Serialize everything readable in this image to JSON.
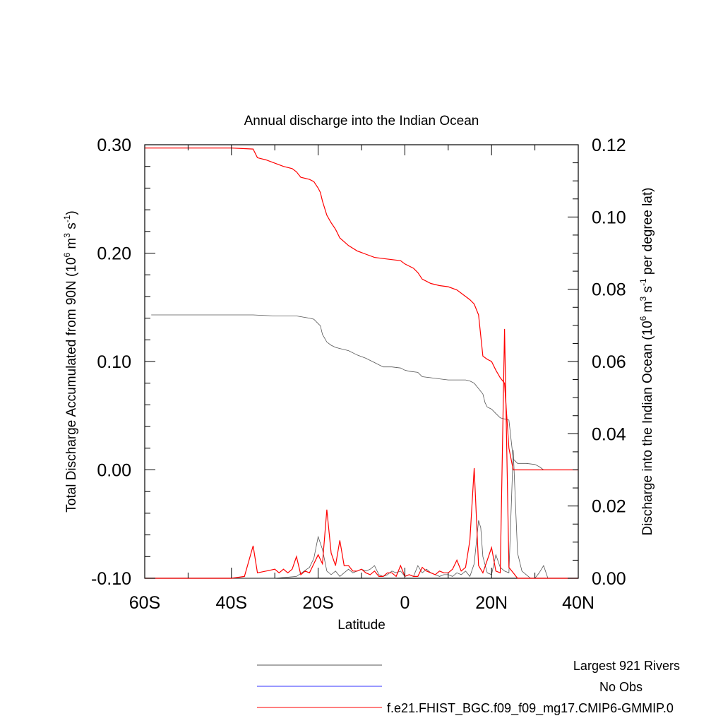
{
  "chart_data": {
    "type": "line",
    "title": "Annual discharge into the Indian Ocean",
    "xlabel": "Latitude",
    "ylabel_left": {
      "base": "Total Discharge Accumulated from 90N (10",
      "sup1": "6",
      "mid1": " m",
      "sup2": "3",
      "mid2": " s",
      "sup3": "-1",
      "end": ")"
    },
    "ylabel_right": {
      "base": "Discharge into the Indian Ocean (10",
      "sup1": "6",
      "mid1": " m",
      "sup2": "3",
      "mid2": " s",
      "sup3": "-1",
      "end": " per degree lat)"
    },
    "xlim": [
      -60,
      40
    ],
    "ylim_left": [
      -0.1,
      0.3
    ],
    "ylim_right": [
      0.0,
      0.12
    ],
    "x_ticks": [
      {
        "value": -60,
        "label": "60S"
      },
      {
        "value": -40,
        "label": "40S"
      },
      {
        "value": -20,
        "label": "20S"
      },
      {
        "value": 0,
        "label": "0"
      },
      {
        "value": 20,
        "label": "20N"
      },
      {
        "value": 40,
        "label": "40N"
      }
    ],
    "y_left_ticks": [
      {
        "value": -0.1,
        "label": "-0.10"
      },
      {
        "value": 0.0,
        "label": "0.00"
      },
      {
        "value": 0.1,
        "label": "0.10"
      },
      {
        "value": 0.2,
        "label": "0.20"
      },
      {
        "value": 0.3,
        "label": "0.30"
      }
    ],
    "y_right_ticks": [
      {
        "value": 0.0,
        "label": "0.00"
      },
      {
        "value": 0.02,
        "label": "0.02"
      },
      {
        "value": 0.04,
        "label": "0.04"
      },
      {
        "value": 0.06,
        "label": "0.06"
      },
      {
        "value": 0.08,
        "label": "0.08"
      },
      {
        "value": 0.1,
        "label": "0.10"
      },
      {
        "value": 0.12,
        "label": "0.12"
      }
    ],
    "grid": false,
    "legend_placement": "bottom-right",
    "series": [
      {
        "name": "Largest 921 Rivers",
        "axis": "left",
        "color": "#555555",
        "x": [
          -58.5,
          -50,
          -40,
          -35,
          -30,
          -25,
          -22,
          -21,
          -20,
          -19.5,
          -19,
          -18,
          -17,
          -16,
          -15,
          -13,
          -11,
          -9,
          -7,
          -5,
          -3,
          -1,
          0,
          1,
          3,
          4,
          6,
          8,
          10,
          12,
          14,
          15,
          16,
          17,
          18,
          18.5,
          19,
          20,
          21,
          22,
          23,
          24,
          25,
          26,
          28,
          30,
          31,
          32,
          40
        ],
        "y": [
          0.143,
          0.143,
          0.143,
          0.143,
          0.142,
          0.142,
          0.14,
          0.139,
          0.135,
          0.133,
          0.125,
          0.118,
          0.115,
          0.113,
          0.112,
          0.11,
          0.106,
          0.103,
          0.099,
          0.095,
          0.095,
          0.094,
          0.092,
          0.091,
          0.09,
          0.086,
          0.085,
          0.084,
          0.083,
          0.083,
          0.083,
          0.082,
          0.08,
          0.075,
          0.07,
          0.062,
          0.058,
          0.056,
          0.052,
          0.048,
          0.047,
          0.046,
          0.01,
          0.006,
          0.006,
          0.005,
          0.003,
          0.0,
          0.0
        ]
      },
      {
        "name": "Largest 921 Rivers",
        "axis": "right",
        "color": "#555555",
        "x": [
          -60,
          -40,
          -30,
          -25,
          -22,
          -21,
          -20,
          -19,
          -18,
          -17,
          -16,
          -15,
          -14,
          -13,
          -12,
          -11,
          -10,
          -9,
          -8,
          -7,
          -6,
          -5,
          -4,
          -3,
          -2,
          -1,
          0,
          1,
          2,
          3,
          4,
          5,
          6,
          7,
          8,
          9,
          10,
          11,
          12,
          13,
          14,
          15,
          16,
          17,
          17.5,
          18,
          19,
          20,
          21,
          22,
          23,
          24,
          25,
          26,
          27,
          28,
          29,
          30,
          31,
          32,
          33,
          40
        ],
        "y": [
          0,
          0,
          0,
          0.0005,
          0.003,
          0.0055,
          0.0115,
          0.008,
          0.002,
          0.001,
          0.002,
          0.0005,
          0.0015,
          0.0025,
          0.0015,
          0.002,
          0.0025,
          0.002,
          0.0025,
          0.0035,
          0.001,
          0.0005,
          0.001,
          0.002,
          0.0015,
          0.002,
          0.0005,
          0.001,
          0.0005,
          0.0035,
          0.0015,
          0.0025,
          0.0015,
          0.001,
          0.0005,
          0.001,
          0.001,
          0.0005,
          0.0015,
          0.001,
          0.002,
          0.0005,
          0.004,
          0.016,
          0.014,
          0.006,
          0.0015,
          0.001,
          0.0065,
          0.003,
          0.002,
          0.0015,
          0.0355,
          0.007,
          0.002,
          0.001,
          0,
          0,
          0.0015,
          0.0035,
          0,
          0
        ]
      },
      {
        "name": "No Obs",
        "axis": "left",
        "color": "#3333ff",
        "x": [],
        "y": []
      },
      {
        "name": "f.e21.FHIST_BGC.f09_f09_mg17.CMIP6-GMMIP.0",
        "axis": "left",
        "color": "#ff0000",
        "x": [
          -60,
          -50,
          -40,
          -35,
          -34,
          -32,
          -30,
          -28,
          -26,
          -25,
          -24,
          -22,
          -21,
          -20,
          -19.5,
          -19,
          -18,
          -17,
          -16,
          -15,
          -13,
          -11,
          -9,
          -7,
          -5,
          -3,
          -1,
          0,
          1,
          2,
          3,
          4,
          6,
          8,
          10,
          12,
          14,
          15,
          16,
          17,
          18,
          19,
          20,
          21,
          22,
          23,
          24,
          25,
          26,
          30,
          40
        ],
        "y": [
          0.297,
          0.297,
          0.297,
          0.296,
          0.288,
          0.286,
          0.283,
          0.28,
          0.278,
          0.275,
          0.27,
          0.268,
          0.266,
          0.26,
          0.256,
          0.248,
          0.235,
          0.228,
          0.222,
          0.214,
          0.207,
          0.202,
          0.199,
          0.196,
          0.195,
          0.194,
          0.193,
          0.19,
          0.188,
          0.186,
          0.182,
          0.176,
          0.172,
          0.17,
          0.169,
          0.166,
          0.16,
          0.157,
          0.153,
          0.143,
          0.105,
          0.102,
          0.1,
          0.092,
          0.085,
          0.08,
          0.02,
          0.0,
          0.0,
          0.0,
          0.0
        ]
      },
      {
        "name": "f.e21.FHIST_BGC.f09_f09_mg17.CMIP6-GMMIP.0",
        "axis": "right",
        "color": "#ff0000",
        "x": [
          -60,
          -45,
          -40,
          -37,
          -35,
          -34,
          -32,
          -30,
          -29,
          -28,
          -27,
          -26,
          -25,
          -24,
          -23,
          -22,
          -21,
          -20,
          -19,
          -18,
          -17,
          -16,
          -15,
          -14,
          -13,
          -12,
          -11,
          -10,
          -9,
          -8,
          -7,
          -6,
          -5,
          -4,
          -3,
          -2,
          -1,
          0,
          1,
          2,
          3,
          4,
          5,
          6,
          7,
          8,
          9,
          10,
          11,
          12,
          13,
          14,
          15,
          16,
          17,
          18,
          19,
          20,
          21,
          22,
          23,
          24,
          25,
          26,
          30,
          40
        ],
        "y": [
          0,
          0,
          0,
          0.0005,
          0.009,
          0.0015,
          0.002,
          0.0025,
          0.0015,
          0.0025,
          0.0015,
          0.0025,
          0.006,
          0.001,
          0.002,
          0.0015,
          0.004,
          0.0065,
          0.004,
          0.019,
          0.007,
          0.0035,
          0.0105,
          0.0035,
          0.0035,
          0.002,
          0.002,
          0.0025,
          0.0015,
          0.001,
          0.002,
          0.0005,
          0.0005,
          0.0015,
          0.0015,
          0.0005,
          0.0035,
          0.0005,
          0.001,
          0.0005,
          0.0005,
          0.003,
          0.002,
          0.0015,
          0.001,
          0.002,
          0.0015,
          0.0015,
          0.0025,
          0.005,
          0.002,
          0.003,
          0.0105,
          0.0305,
          0.0035,
          0.0015,
          0.005,
          0.0085,
          0.002,
          0.0015,
          0.069,
          0.003,
          0.0015,
          0,
          0,
          0
        ]
      }
    ],
    "legend": [
      {
        "label": "Largest 921 Rivers",
        "color": "#555555"
      },
      {
        "label": "No Obs",
        "color": "#3333ff"
      },
      {
        "label": "f.e21.FHIST_BGC.f09_f09_mg17.CMIP6-GMMIP.0",
        "color": "#ff0000"
      }
    ]
  }
}
